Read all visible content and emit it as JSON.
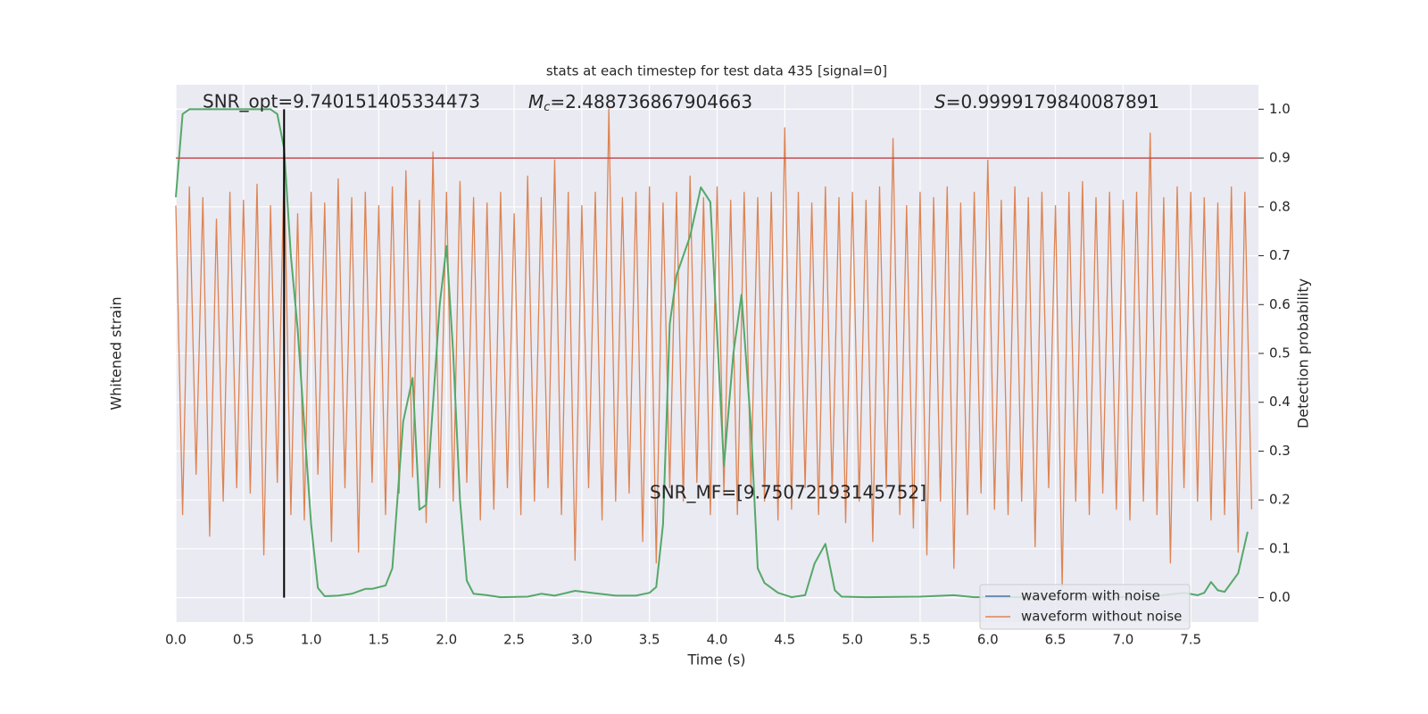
{
  "chart_data": {
    "type": "line",
    "title": "stats at each timestep for test data 435 [signal=0]",
    "xlabel": "Time (s)",
    "ylabel": "Whitened strain",
    "y2label": "Detection probability",
    "xlim": [
      0,
      8
    ],
    "ylim": [
      -1,
      1
    ],
    "y2lim": [
      -0.05,
      1.05
    ],
    "xticks": [
      {
        "value": 0,
        "label": "0.0"
      },
      {
        "value": 0.5,
        "label": "0.5"
      },
      {
        "value": 1,
        "label": "1.0"
      },
      {
        "value": 1.5,
        "label": "1.5"
      },
      {
        "value": 2,
        "label": "2.0"
      },
      {
        "value": 2.5,
        "label": "2.5"
      },
      {
        "value": 3,
        "label": "3.0"
      },
      {
        "value": 3.5,
        "label": "3.5"
      },
      {
        "value": 4,
        "label": "4.0"
      },
      {
        "value": 4.5,
        "label": "4.5"
      },
      {
        "value": 5,
        "label": "5.0"
      },
      {
        "value": 5.5,
        "label": "5.5"
      },
      {
        "value": 6,
        "label": "6.0"
      },
      {
        "value": 6.5,
        "label": "6.5"
      },
      {
        "value": 7,
        "label": "7.0"
      },
      {
        "value": 7.5,
        "label": "7.5"
      }
    ],
    "y2ticks": [
      {
        "value": 0,
        "label": "0.0"
      },
      0.1,
      0.2,
      0.3,
      0.4,
      0.5,
      0.6,
      0.7,
      0.8,
      0.9,
      {
        "value": 1,
        "label": "1.0"
      }
    ],
    "grid": true,
    "annotations": [
      {
        "text": "SNR_opt=9.740151405334473"
      },
      {
        "symbol": "M",
        "subscript": "c",
        "text": "=2.488736867904663"
      },
      {
        "symbol": "S",
        "text": "=0.9999179840087891"
      },
      {
        "text": "SNR_MF=[9.75072193145752]"
      }
    ],
    "legend": {
      "position": "lower right",
      "entries": [
        {
          "name": "waveform with noise",
          "color": "#4c72b0"
        },
        {
          "name": "waveform without noise",
          "color": "#dd8452"
        }
      ]
    },
    "threshold": 0.9,
    "threshold_color": "#c44e52",
    "marker_x": 0.8,
    "marker_color": "#000000",
    "series": [
      {
        "color": "#dd8452",
        "axis": "y",
        "x": [
          0,
          0.05,
          0.1,
          0.15,
          0.2,
          0.25,
          0.3,
          0.35,
          0.4,
          0.45,
          0.5,
          0.55,
          0.6,
          0.65,
          0.7,
          0.75,
          0.8,
          0.85,
          0.9,
          0.95,
          1,
          1.05,
          1.1,
          1.15,
          1.2,
          1.25,
          1.3,
          1.35,
          1.4,
          1.45,
          1.5,
          1.55,
          1.6,
          1.65,
          1.7,
          1.75,
          1.8,
          1.85,
          1.9,
          1.95,
          2,
          2.05,
          2.1,
          2.15,
          2.2,
          2.25,
          2.3,
          2.35,
          2.4,
          2.45,
          2.5,
          2.55,
          2.6,
          2.65,
          2.7,
          2.75,
          2.8,
          2.85,
          2.9,
          2.95,
          3,
          3.05,
          3.1,
          3.15,
          3.2,
          3.25,
          3.3,
          3.35,
          3.4,
          3.45,
          3.5,
          3.55,
          3.6,
          3.65,
          3.7,
          3.75,
          3.8,
          3.85,
          3.9,
          3.95,
          4,
          4.05,
          4.1,
          4.15,
          4.2,
          4.25,
          4.3,
          4.35,
          4.4,
          4.45,
          4.5,
          4.55,
          4.6,
          4.65,
          4.7,
          4.75,
          4.8,
          4.85,
          4.9,
          4.95,
          5,
          5.05,
          5.1,
          5.15,
          5.2,
          5.25,
          5.3,
          5.35,
          5.4,
          5.45,
          5.5,
          5.55,
          5.6,
          5.65,
          5.7,
          5.75,
          5.8,
          5.85,
          5.9,
          5.95,
          6,
          6.05,
          6.1,
          6.15,
          6.2,
          6.25,
          6.3,
          6.35,
          6.4,
          6.45,
          6.5,
          6.55,
          6.6,
          6.65,
          6.7,
          6.75,
          6.8,
          6.85,
          6.9,
          6.95,
          7,
          7.05,
          7.1,
          7.15,
          7.2,
          7.25,
          7.3,
          7.35,
          7.4,
          7.45,
          7.5,
          7.55,
          7.6,
          7.65,
          7.7,
          7.75,
          7.8,
          7.85,
          7.9,
          7.95
        ],
        "values": [
          0.55,
          -0.6,
          0.62,
          -0.45,
          0.58,
          -0.68,
          0.5,
          -0.55,
          0.6,
          -0.5,
          0.57,
          -0.52,
          0.63,
          -0.75,
          0.55,
          -0.48,
          0.7,
          -0.6,
          0.52,
          -0.62,
          0.6,
          -0.45,
          0.56,
          -0.7,
          0.65,
          -0.5,
          0.58,
          -0.74,
          0.6,
          -0.48,
          0.55,
          -0.6,
          0.62,
          -0.52,
          0.68,
          -0.46,
          0.57,
          -0.63,
          0.75,
          -0.5,
          0.6,
          -0.55,
          0.64,
          -0.48,
          0.58,
          -0.62,
          0.56,
          -0.58,
          0.6,
          -0.5,
          0.52,
          -0.6,
          0.66,
          -0.55,
          0.58,
          -0.5,
          0.72,
          -0.6,
          0.6,
          -0.77,
          0.55,
          -0.5,
          0.6,
          -0.62,
          0.91,
          -0.55,
          0.58,
          -0.52,
          0.6,
          -0.7,
          0.62,
          -0.78,
          0.56,
          -0.5,
          0.6,
          -0.55,
          0.66,
          -0.48,
          0.58,
          -0.6,
          0.62,
          -0.52,
          0.57,
          -0.6,
          0.6,
          -0.5,
          0.58,
          -0.55,
          0.6,
          -0.62,
          0.84,
          -0.58,
          0.6,
          -0.5,
          0.56,
          -0.6,
          0.62,
          -0.52,
          0.58,
          -0.63,
          0.6,
          -0.55,
          0.57,
          -0.7,
          0.62,
          -0.5,
          0.8,
          -0.6,
          0.55,
          -0.65,
          0.6,
          -0.75,
          0.58,
          -0.55,
          0.62,
          -0.8,
          0.56,
          -0.6,
          0.6,
          -0.52,
          0.72,
          -0.58,
          0.57,
          -0.6,
          0.62,
          -0.55,
          0.58,
          -0.72,
          0.6,
          -0.5,
          0.55,
          -0.87,
          0.6,
          -0.55,
          0.64,
          -0.6,
          0.58,
          -0.52,
          0.6,
          -0.58,
          0.57,
          -0.62,
          0.6,
          -0.55,
          0.82,
          -0.6,
          0.58,
          -0.78,
          0.62,
          -0.5,
          0.6,
          -0.55,
          0.58,
          -0.62,
          0.56,
          -0.6,
          0.62,
          -0.74,
          0.6,
          -0.58
        ]
      },
      {
        "color": "#55a868",
        "axis": "y2",
        "x": [
          0,
          0.05,
          0.1,
          0.7,
          0.75,
          0.8,
          0.85,
          0.9,
          0.95,
          1,
          1.05,
          1.1,
          1.2,
          1.3,
          1.4,
          1.45,
          1.55,
          1.6,
          1.68,
          1.75,
          1.8,
          1.85,
          1.95,
          2,
          2.05,
          2.1,
          2.15,
          2.2,
          2.3,
          2.4,
          2.6,
          2.7,
          2.8,
          2.95,
          3.1,
          3.25,
          3.4,
          3.5,
          3.55,
          3.6,
          3.65,
          3.7,
          3.8,
          3.88,
          3.95,
          4.05,
          4.12,
          4.18,
          4.25,
          4.3,
          4.35,
          4.45,
          4.55,
          4.65,
          4.72,
          4.8,
          4.87,
          4.92,
          5.1,
          5.5,
          5.75,
          5.9,
          6.5,
          7,
          7.3,
          7.45,
          7.55,
          7.6,
          7.65,
          7.7,
          7.75,
          7.85,
          7.92
        ],
        "values": [
          0.82,
          0.99,
          1,
          1,
          0.99,
          0.92,
          0.7,
          0.55,
          0.35,
          0.15,
          0.02,
          0.003,
          0.004,
          0.008,
          0.018,
          0.018,
          0.025,
          0.06,
          0.36,
          0.45,
          0.18,
          0.19,
          0.6,
          0.72,
          0.5,
          0.2,
          0.035,
          0.008,
          0.005,
          0.001,
          0.002,
          0.008,
          0.004,
          0.014,
          0.009,
          0.004,
          0.004,
          0.01,
          0.022,
          0.15,
          0.56,
          0.66,
          0.74,
          0.84,
          0.81,
          0.27,
          0.5,
          0.62,
          0.35,
          0.06,
          0.03,
          0.01,
          0.001,
          0.005,
          0.07,
          0.11,
          0.015,
          0.002,
          0.001,
          0.002,
          0.005,
          0.001,
          0.001,
          0.001,
          0.005,
          0.01,
          0.005,
          0.01,
          0.032,
          0.015,
          0.012,
          0.05,
          0.135
        ]
      }
    ]
  }
}
